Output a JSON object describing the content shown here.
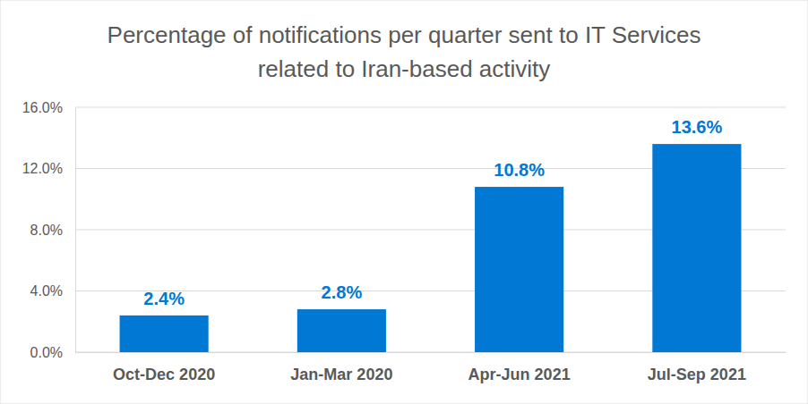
{
  "chart_data": {
    "type": "bar",
    "title": "Percentage of notifications per quarter sent to IT Services related to Iran-based activity",
    "categories": [
      "Oct-Dec 2020",
      "Jan-Mar 2020",
      "Apr-Jun 2021",
      "Jul-Sep 2021"
    ],
    "values": [
      2.4,
      2.8,
      10.8,
      13.6
    ],
    "value_labels": [
      "2.4%",
      "2.8%",
      "10.8%",
      "13.6%"
    ],
    "color": "#0078d4",
    "ylim": [
      0,
      16
    ],
    "yticks": [
      {
        "value": 0,
        "label": "0.0%"
      },
      {
        "value": 4,
        "label": "4.0%"
      },
      {
        "value": 8,
        "label": "8.0%"
      },
      {
        "value": 12,
        "label": "12.0%"
      },
      {
        "value": 16,
        "label": "16.0%"
      }
    ],
    "grid": true,
    "data_labels": true
  }
}
